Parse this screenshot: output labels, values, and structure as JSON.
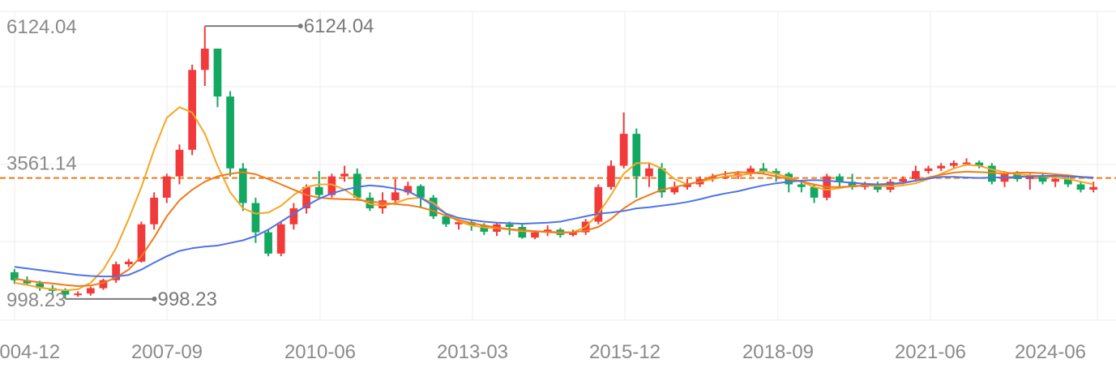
{
  "chart_data": {
    "type": "candlestick",
    "title": "",
    "xlabel": "",
    "ylabel": "",
    "grid": true,
    "ylim": [
      600,
      6400
    ],
    "x_ticks": [
      "2004-12",
      "2007-09",
      "2010-06",
      "2013-03",
      "2015-12",
      "2018-09",
      "2021-06",
      "2024-06"
    ],
    "y_ticks": [
      {
        "value": 6124.04,
        "label": "6124.04"
      },
      {
        "value": 3561.14,
        "label": "3561.14"
      },
      {
        "value": 998.23,
        "label": "998.23"
      }
    ],
    "reference_line": {
      "value": 3270,
      "color": "#f07a1a",
      "style": "dashed"
    },
    "annotations": [
      {
        "label": "6124.04",
        "value": 6124.04,
        "type": "max"
      },
      {
        "label": "998.23",
        "value": 998.23,
        "type": "min"
      }
    ],
    "up_color": "#f23a3a",
    "down_color": "#13a862",
    "candles": [
      [
        1500,
        1350,
        1560,
        1280
      ],
      [
        1350,
        1290,
        1420,
        1250
      ],
      [
        1290,
        1200,
        1340,
        1150
      ],
      [
        1200,
        1150,
        1260,
        1100
      ],
      [
        1150,
        1080,
        1200,
        998.23
      ],
      [
        1080,
        1100,
        1140,
        1040
      ],
      [
        1100,
        1200,
        1230,
        1060
      ],
      [
        1200,
        1350,
        1380,
        1170
      ],
      [
        1350,
        1650,
        1700,
        1300
      ],
      [
        1650,
        1700,
        1750,
        1600
      ],
      [
        1700,
        2400,
        2450,
        1680
      ],
      [
        2400,
        2900,
        3000,
        2300
      ],
      [
        2900,
        3300,
        3350,
        2800
      ],
      [
        3300,
        3800,
        3900,
        3150
      ],
      [
        3800,
        5300,
        5400,
        3700
      ],
      [
        5300,
        5700,
        6124.04,
        5000
      ],
      [
        5700,
        4800,
        5500,
        4600
      ],
      [
        4800,
        3450,
        4900,
        3300
      ],
      [
        3450,
        2800,
        3550,
        2650
      ],
      [
        2800,
        2250,
        2900,
        2050
      ],
      [
        2250,
        1850,
        2300,
        1800
      ],
      [
        1850,
        2400,
        2450,
        1800
      ],
      [
        2400,
        2700,
        2800,
        2300
      ],
      [
        2700,
        3100,
        3150,
        2600
      ],
      [
        3100,
        2950,
        3400,
        2900
      ],
      [
        2950,
        3300,
        3350,
        2900
      ],
      [
        3300,
        3350,
        3500,
        3200
      ],
      [
        3350,
        2900,
        3450,
        2850
      ],
      [
        2900,
        2700,
        3000,
        2650
      ],
      [
        2700,
        2850,
        3000,
        2600
      ],
      [
        2850,
        3000,
        3250,
        2800
      ],
      [
        3000,
        3120,
        3200,
        2950
      ],
      [
        3120,
        2900,
        3150,
        2700
      ],
      [
        2900,
        2550,
        2950,
        2500
      ],
      [
        2550,
        2400,
        2600,
        2350
      ],
      [
        2400,
        2440,
        2480,
        2300
      ],
      [
        2440,
        2380,
        2480,
        2280
      ],
      [
        2380,
        2260,
        2420,
        2200
      ],
      [
        2260,
        2400,
        2430,
        2180
      ],
      [
        2400,
        2350,
        2450,
        2200
      ],
      [
        2350,
        2150,
        2420,
        2130
      ],
      [
        2150,
        2250,
        2280,
        2120
      ],
      [
        2250,
        2300,
        2380,
        2180
      ],
      [
        2300,
        2200,
        2330,
        2150
      ],
      [
        2200,
        2250,
        2300,
        2170
      ],
      [
        2250,
        2450,
        2500,
        2200
      ],
      [
        2450,
        3100,
        3150,
        2400
      ],
      [
        3100,
        3500,
        3600,
        3050
      ],
      [
        3500,
        4100,
        4500,
        3450
      ],
      [
        4100,
        3300,
        4200,
        2900
      ],
      [
        3300,
        3450,
        3550,
        3100
      ],
      [
        3450,
        3000,
        3550,
        2900
      ],
      [
        3000,
        3100,
        3200,
        2960
      ],
      [
        3100,
        3150,
        3250,
        3050
      ],
      [
        3150,
        3250,
        3300,
        3100
      ],
      [
        3250,
        3300,
        3350,
        3200
      ],
      [
        3300,
        3300,
        3400,
        3250
      ],
      [
        3300,
        3350,
        3400,
        3250
      ],
      [
        3350,
        3450,
        3500,
        3300
      ],
      [
        3450,
        3400,
        3550,
        3350
      ],
      [
        3400,
        3350,
        3450,
        3200
      ],
      [
        3350,
        3150,
        3380,
        3000
      ],
      [
        3150,
        3100,
        3200,
        3000
      ],
      [
        3100,
        2900,
        3150,
        2800
      ],
      [
        2900,
        3300,
        3350,
        2850
      ],
      [
        3300,
        3200,
        3350,
        3100
      ],
      [
        3200,
        3100,
        3350,
        3050
      ],
      [
        3100,
        3150,
        3200,
        3050
      ],
      [
        3150,
        3050,
        3200,
        3000
      ],
      [
        3050,
        3200,
        3250,
        3000
      ],
      [
        3200,
        3250,
        3300,
        3150
      ],
      [
        3250,
        3400,
        3500,
        3200
      ],
      [
        3400,
        3450,
        3500,
        3350
      ],
      [
        3450,
        3500,
        3550,
        3400
      ],
      [
        3500,
        3550,
        3600,
        3450
      ],
      [
        3550,
        3560,
        3640,
        3500
      ],
      [
        3560,
        3500,
        3600,
        3450
      ],
      [
        3500,
        3200,
        3550,
        3150
      ],
      [
        3200,
        3350,
        3400,
        3100
      ],
      [
        3350,
        3250,
        3400,
        3200
      ],
      [
        3250,
        3300,
        3350,
        3050
      ],
      [
        3300,
        3200,
        3350,
        3150
      ],
      [
        3200,
        3250,
        3300,
        3100
      ],
      [
        3250,
        3150,
        3300,
        3100
      ],
      [
        3150,
        3050,
        3200,
        3000
      ],
      [
        3050,
        3100,
        3200,
        3000
      ]
    ],
    "series": [
      {
        "color": "#f5a623",
        "values": [
          1300,
          1260,
          1210,
          1180,
          1160,
          1180,
          1300,
          1550,
          1950,
          2500,
          3100,
          3800,
          4400,
          4600,
          4500,
          4100,
          3500,
          3000,
          2700,
          2600,
          2620,
          2750,
          2950,
          3100,
          3150,
          3150,
          3050,
          2900,
          2780,
          2750,
          2800,
          2880,
          2900,
          2800,
          2600,
          2450,
          2380,
          2340,
          2330,
          2300,
          2270,
          2270,
          2250,
          2240,
          2250,
          2350,
          2600,
          2950,
          3350,
          3550,
          3550,
          3450,
          3250,
          3150,
          3200,
          3250,
          3300,
          3320,
          3350,
          3400,
          3350,
          3280,
          3200,
          3100,
          3050,
          3080,
          3120,
          3130,
          3120,
          3110,
          3130,
          3170,
          3250,
          3350,
          3450,
          3520,
          3500,
          3430,
          3380,
          3340,
          3320,
          3300,
          3280,
          3250,
          3200,
          3150
        ]
      },
      {
        "color": "#f07a1a",
        "values": [
          1380,
          1340,
          1310,
          1290,
          1260,
          1240,
          1250,
          1300,
          1400,
          1550,
          1800,
          2150,
          2550,
          2850,
          3050,
          3200,
          3300,
          3350,
          3380,
          3340,
          3250,
          3150,
          3050,
          2950,
          2900,
          2880,
          2870,
          2860,
          2830,
          2800,
          2780,
          2760,
          2720,
          2650,
          2560,
          2480,
          2420,
          2380,
          2340,
          2310,
          2290,
          2270,
          2260,
          2250,
          2250,
          2280,
          2350,
          2500,
          2700,
          2850,
          2950,
          3050,
          3100,
          3150,
          3200,
          3300,
          3350,
          3380,
          3370,
          3350,
          3300,
          3250,
          3200,
          3150,
          3100,
          3100,
          3110,
          3130,
          3140,
          3150,
          3170,
          3220,
          3280,
          3330,
          3370,
          3390,
          3380,
          3370,
          3350,
          3370,
          3370,
          3360,
          3340,
          3320,
          3290,
          3260
        ]
      },
      {
        "color": "#4f73e6",
        "values": [
          1600,
          1570,
          1540,
          1510,
          1480,
          1450,
          1430,
          1420,
          1420,
          1450,
          1550,
          1680,
          1800,
          1900,
          1950,
          1980,
          2000,
          2050,
          2100,
          2180,
          2300,
          2450,
          2600,
          2750,
          2880,
          2980,
          3050,
          3100,
          3130,
          3110,
          3070,
          3020,
          2900,
          2750,
          2600,
          2520,
          2480,
          2450,
          2430,
          2420,
          2410,
          2420,
          2430,
          2450,
          2500,
          2550,
          2600,
          2620,
          2650,
          2700,
          2720,
          2750,
          2780,
          2820,
          2870,
          2930,
          2980,
          3020,
          3080,
          3130,
          3170,
          3200,
          3220,
          3230,
          3220,
          3200,
          3180,
          3160,
          3150,
          3160,
          3180,
          3220,
          3260,
          3290,
          3290,
          3280,
          3270,
          3280,
          3280,
          3290,
          3300,
          3310,
          3310,
          3300,
          3290,
          3280
        ]
      }
    ]
  }
}
